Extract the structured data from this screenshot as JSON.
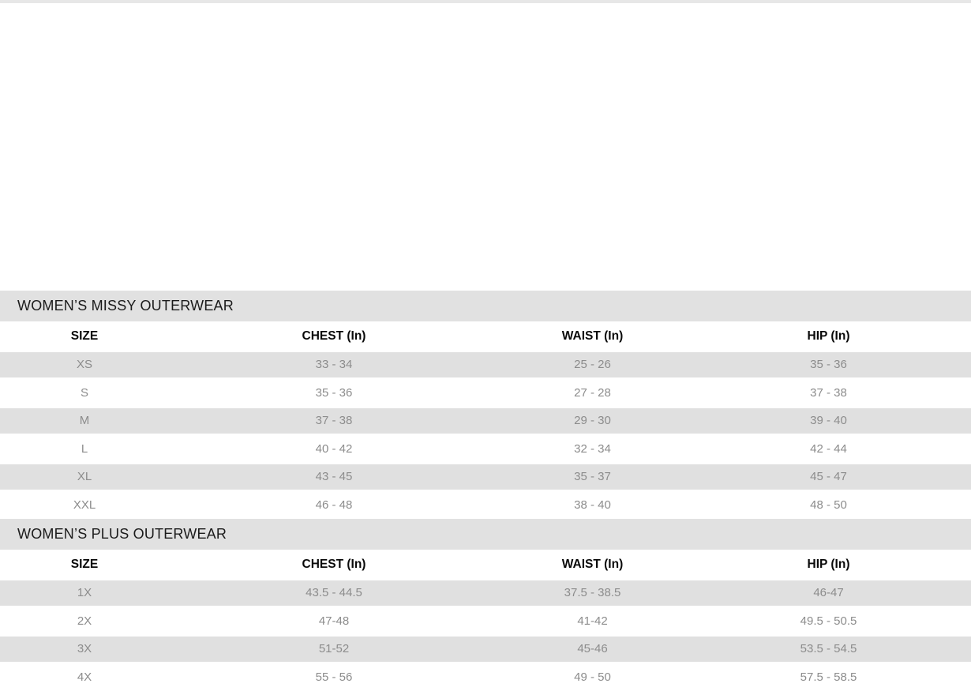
{
  "page": {
    "top_strip_color": "#e7e7e7",
    "background_color": "#ffffff",
    "section_bar_color": "#e1e1e1",
    "alt_row_color": "#e0e0e0",
    "data_text_color": "#8c8c8c"
  },
  "size_chart": {
    "tables": [
      {
        "title": "WOMEN’S MISSY OUTERWEAR",
        "columns": [
          "SIZE",
          "CHEST (In)",
          "WAIST (In)",
          "HIP (In)"
        ],
        "rows": [
          [
            "XS",
            "33 - 34",
            "25 - 26",
            "35 - 36"
          ],
          [
            "S",
            "35 - 36",
            "27 - 28",
            "37 - 38"
          ],
          [
            "M",
            "37 - 38",
            "29 - 30",
            "39 - 40"
          ],
          [
            "L",
            "40 - 42",
            "32 - 34",
            "42 - 44"
          ],
          [
            "XL",
            "43 - 45",
            "35 - 37",
            "45 - 47"
          ],
          [
            "XXL",
            "46 - 48",
            "38 - 40",
            "48 - 50"
          ]
        ]
      },
      {
        "title": "WOMEN’S PLUS OUTERWEAR",
        "columns": [
          "SIZE",
          "CHEST (In)",
          "WAIST (In)",
          "HIP (In)"
        ],
        "rows": [
          [
            "1X",
            "43.5 - 44.5",
            "37.5 - 38.5",
            "46-47"
          ],
          [
            "2X",
            "47-48",
            "41-42",
            "49.5 - 50.5"
          ],
          [
            "3X",
            "51-52",
            "45-46",
            "53.5 - 54.5"
          ],
          [
            "4X",
            "55 - 56",
            "49 - 50",
            "57.5 - 58.5"
          ]
        ]
      }
    ]
  }
}
